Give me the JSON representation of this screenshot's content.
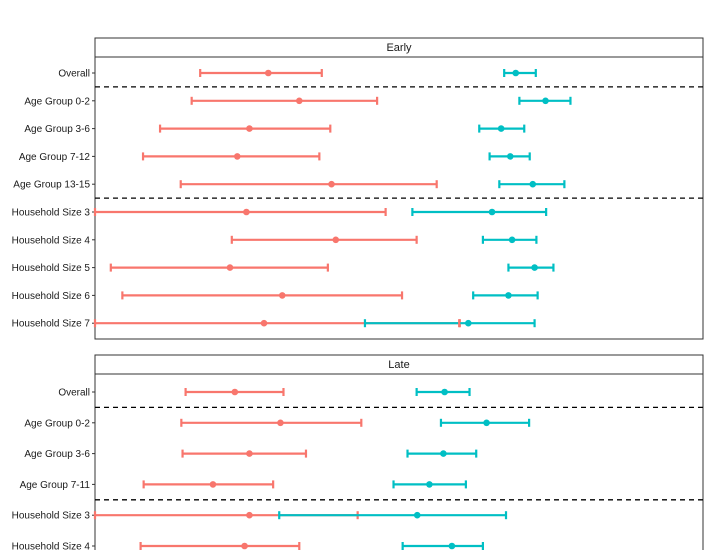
{
  "colors": {
    "red": "#F8766D",
    "teal": "#00BFC4",
    "panel_border": "#333333",
    "strip_fill": "#FFFFFF",
    "separator": "#000000"
  },
  "chart_data": [
    {
      "type": "interval",
      "title": "Early",
      "xlim": [
        0,
        100
      ],
      "categories": [
        "Overall",
        "Age Group 0-2",
        "Age Group 3-6",
        "Age Group 7-12",
        "Age Group 13-15",
        "Household Size 3",
        "Household Size 4",
        "Household Size 5",
        "Household Size 6",
        "Household Size 7"
      ],
      "separators_after": [
        0,
        4
      ],
      "series": [
        {
          "color": "#F8766D",
          "points": [
            {
              "est": 28.5,
              "lo": 17.3,
              "hi": 37.3
            },
            {
              "est": 33.6,
              "lo": 15.9,
              "hi": 46.4
            },
            {
              "est": 25.4,
              "lo": 10.7,
              "hi": 38.7
            },
            {
              "est": 23.4,
              "lo": 7.9,
              "hi": 36.9
            },
            {
              "est": 38.9,
              "lo": 14.1,
              "hi": 56.2
            },
            {
              "est": 24.9,
              "lo": 0,
              "hi": 47.8
            },
            {
              "est": 39.6,
              "lo": 22.5,
              "hi": 52.9
            },
            {
              "est": 22.2,
              "lo": 2.6,
              "hi": 38.3
            },
            {
              "est": 30.8,
              "lo": 4.5,
              "hi": 50.5
            },
            {
              "est": 27.8,
              "lo": 0,
              "hi": 60.0
            }
          ]
        },
        {
          "color": "#00BFC4",
          "points": [
            {
              "est": 69.2,
              "lo": 67.3,
              "hi": 72.5
            },
            {
              "est": 74.1,
              "lo": 69.8,
              "hi": 78.2
            },
            {
              "est": 66.8,
              "lo": 63.2,
              "hi": 70.6
            },
            {
              "est": 68.3,
              "lo": 64.9,
              "hi": 71.5
            },
            {
              "est": 72.0,
              "lo": 66.5,
              "hi": 77.2
            },
            {
              "est": 65.3,
              "lo": 52.2,
              "hi": 74.2
            },
            {
              "est": 68.6,
              "lo": 63.8,
              "hi": 72.6
            },
            {
              "est": 72.3,
              "lo": 68.0,
              "hi": 75.4
            },
            {
              "est": 68.0,
              "lo": 62.2,
              "hi": 72.8
            },
            {
              "est": 61.4,
              "lo": 44.4,
              "hi": 72.3
            }
          ]
        }
      ],
      "extra_ticks": [
        {
          "row": 9,
          "x": 59.9,
          "color": "#F8766D"
        }
      ]
    },
    {
      "type": "interval",
      "title": "Late",
      "xlim": [
        0,
        100
      ],
      "categories": [
        "Overall",
        "Age Group 0-2",
        "Age Group 3-6",
        "Age Group 7-11",
        "Household Size 3",
        "Household Size 4"
      ],
      "separators_after": [
        0,
        3
      ],
      "series": [
        {
          "color": "#F8766D",
          "points": [
            {
              "est": 23.0,
              "lo": 14.9,
              "hi": 31.0
            },
            {
              "est": 30.5,
              "lo": 14.2,
              "hi": 43.8
            },
            {
              "est": 25.4,
              "lo": 14.4,
              "hi": 34.7
            },
            {
              "est": 19.4,
              "lo": 8.0,
              "hi": 29.3
            },
            {
              "est": 25.4,
              "lo": 0,
              "hi": 43.2
            },
            {
              "est": 24.6,
              "lo": 7.5,
              "hi": 33.6
            }
          ]
        },
        {
          "color": "#00BFC4",
          "points": [
            {
              "est": 57.5,
              "lo": 52.9,
              "hi": 61.6
            },
            {
              "est": 64.4,
              "lo": 56.9,
              "hi": 71.4
            },
            {
              "est": 57.3,
              "lo": 51.4,
              "hi": 62.7
            },
            {
              "est": 55.0,
              "lo": 49.1,
              "hi": 61.0
            },
            {
              "est": 53.0,
              "lo": 30.3,
              "hi": 67.6
            },
            {
              "est": 58.7,
              "lo": 50.6,
              "hi": 63.8
            }
          ]
        }
      ],
      "extra_ticks": []
    }
  ]
}
